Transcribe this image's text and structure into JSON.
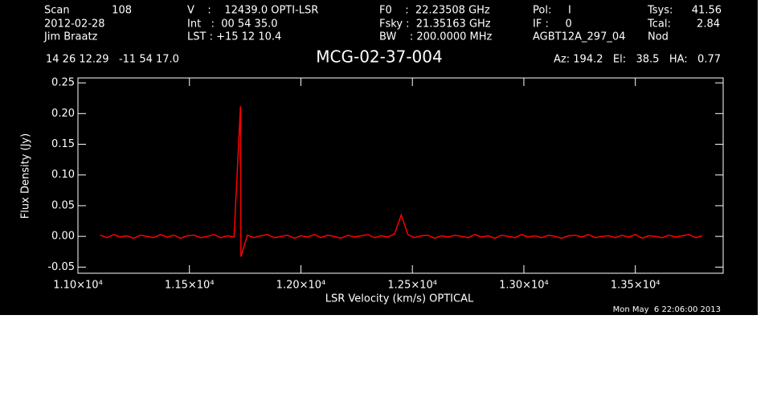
{
  "header": {
    "scan_label": "Scan",
    "scan": "108",
    "date": "2012-02-28",
    "observer": "Jim Braatz",
    "velocity": "V    :    12439.0 OPTI-LSR",
    "int": "Int   :  00 54 35.0",
    "lst": "LST : +15 12 10.4",
    "f0": "F0    :  22.23508 GHz",
    "fsky": "Fsky :  21.35163 GHz",
    "bw": "BW    : 200.0000 MHz",
    "pol": "Pol:     I",
    "if": "IF :     0",
    "project": "AGBT12A_297_04",
    "tsys_label": "Tsys:",
    "tsys": "41.56",
    "tcal_label": "Tcal:",
    "tcal": "2.84",
    "proc": "Nod",
    "coords": "14 26 12.29   -11 54 17.0",
    "azelha": "Az: 194.2   El:   38.5   HA:   0.77",
    "timestamp": "Mon May  6 22:06:00 2013"
  },
  "chart_data": {
    "type": "line",
    "title": "MCG-02-37-004",
    "x_label": "LSR Velocity (km/s) OPTICAL",
    "y_label": "Flux Density (Jy)",
    "xlim": [
      11000,
      13894
    ],
    "ylim": [
      -0.06,
      0.258
    ],
    "xticks": [
      {
        "value": 11000,
        "label": "1.10×10⁴"
      },
      {
        "value": 11500,
        "label": "1.15×10⁴"
      },
      {
        "value": 12000,
        "label": "1.20×10⁴"
      },
      {
        "value": 12500,
        "label": "1.25×10⁴"
      },
      {
        "value": 13000,
        "label": "1.30×10⁴"
      },
      {
        "value": 13500,
        "label": "1.35×10⁴"
      }
    ],
    "yticks": [
      -0.05,
      {
        "value": 0,
        "label": "0.00"
      },
      0.05,
      {
        "value": 0.1,
        "label": "0.10"
      },
      0.15,
      {
        "value": 0.2,
        "label": "0.20"
      },
      0.25
    ],
    "x": [
      11100,
      11130,
      11160,
      11190,
      11220,
      11250,
      11280,
      11310,
      11340,
      11370,
      11400,
      11430,
      11460,
      11490,
      11520,
      11550,
      11580,
      11610,
      11640,
      11670,
      11700,
      11729,
      11731,
      11760,
      11790,
      11820,
      11850,
      11880,
      11910,
      11940,
      11970,
      12000,
      12030,
      12060,
      12090,
      12120,
      12150,
      12180,
      12210,
      12240,
      12270,
      12300,
      12330,
      12360,
      12390,
      12420,
      12450,
      12480,
      12510,
      12540,
      12570,
      12600,
      12630,
      12660,
      12690,
      12720,
      12750,
      12780,
      12810,
      12840,
      12870,
      12900,
      12930,
      12960,
      12990,
      13020,
      13050,
      13080,
      13110,
      13140,
      13170,
      13200,
      13230,
      13260,
      13290,
      13320,
      13350,
      13380,
      13410,
      13440,
      13470,
      13500,
      13530,
      13560,
      13590,
      13620,
      13650,
      13680,
      13710,
      13740,
      13770,
      13800
    ],
    "series": [
      {
        "name": "spectrum",
        "color": "#ff0000",
        "values": [
          0.002,
          -0.002,
          0.003,
          -0.001,
          0.001,
          -0.003,
          0.002,
          0.0,
          -0.002,
          0.003,
          -0.001,
          0.002,
          -0.003,
          0.001,
          0.002,
          -0.002,
          0.0,
          0.003,
          -0.002,
          0.001,
          -0.001,
          0.212,
          -0.033,
          0.002,
          -0.002,
          0.001,
          0.003,
          -0.002,
          0.0,
          0.002,
          -0.003,
          0.001,
          -0.001,
          0.003,
          -0.002,
          0.002,
          0.0,
          -0.003,
          0.002,
          -0.001,
          0.001,
          0.003,
          -0.002,
          0.001,
          -0.001,
          0.004,
          0.035,
          0.003,
          -0.002,
          0.001,
          0.002,
          -0.003,
          0.001,
          -0.001,
          0.002,
          0.0,
          -0.002,
          0.003,
          -0.001,
          0.001,
          -0.003,
          0.002,
          0.0,
          -0.002,
          0.003,
          -0.001,
          0.001,
          -0.002,
          0.002,
          0.0,
          -0.003,
          0.001,
          0.002,
          -0.001,
          0.003,
          -0.002,
          0.0,
          0.001,
          -0.002,
          0.002,
          -0.001,
          0.003,
          -0.003,
          0.001,
          0.0,
          -0.002,
          0.002,
          -0.001,
          0.001,
          0.003,
          -0.002,
          0.001
        ]
      }
    ]
  }
}
